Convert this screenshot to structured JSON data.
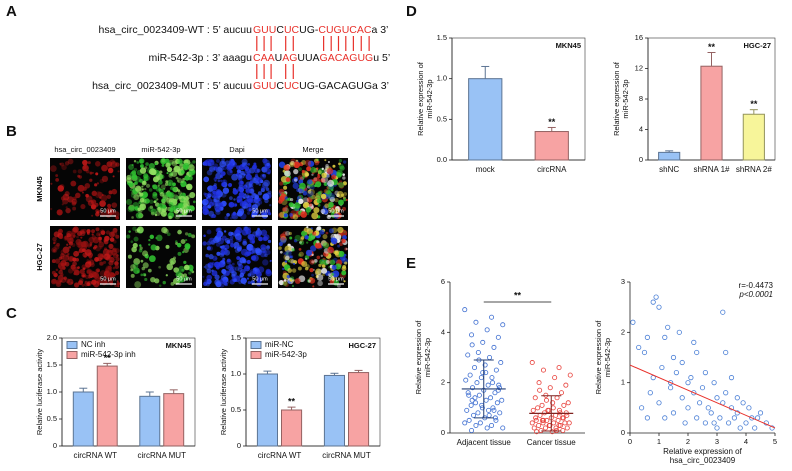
{
  "panel_labels": [
    "A",
    "B",
    "C",
    "D",
    "E"
  ],
  "panel_a": {
    "lines": [
      {
        "label": "hsa_circ_0023409-WT : 5’ aucuu",
        "segments": [
          {
            "text": "GUU",
            "color": "#e8302a"
          },
          {
            "text": "C",
            "color": "#111111"
          },
          {
            "text": "UC",
            "color": "#e8302a"
          },
          {
            "text": "UG-",
            "color": "#111111"
          },
          {
            "text": "CUGUCAC",
            "color": "#e8302a"
          },
          {
            "text": "a 3’",
            "color": "#111111"
          }
        ]
      },
      {
        "label": "miR-542-3p : 3’ aaagu",
        "segments": [
          {
            "text": "CAA",
            "color": "#e8302a"
          },
          {
            "text": "U",
            "color": "#111111"
          },
          {
            "text": "AG",
            "color": "#e8302a"
          },
          {
            "text": "UUA",
            "color": "#111111"
          },
          {
            "text": "GACAGUG",
            "color": "#e8302a"
          },
          {
            "text": "u 5’",
            "color": "#111111"
          }
        ]
      },
      {
        "label": "hsa_circ_0023409-MUT : 5’ aucuu",
        "segments": [
          {
            "text": "GUU",
            "color": "#e8302a"
          },
          {
            "text": "C",
            "color": "#111111"
          },
          {
            "text": "UC",
            "color": "#e8302a"
          },
          {
            "text": "UG-GACAGUGa 3’",
            "color": "#111111"
          }
        ]
      }
    ]
  },
  "panel_b": {
    "columns": [
      "hsa_circ_0023409",
      "miR-542-3p",
      "Dapi",
      "Merge"
    ],
    "rows": [
      "MKN45",
      "HGC-27"
    ],
    "scale_bar": "50 μm"
  },
  "chart_data": [
    {
      "type": "bar",
      "title": "MKN45",
      "ylabel": [
        "Relative luciferase activity"
      ],
      "categories": [
        "circRNA WT",
        "circRNA MUT"
      ],
      "series": [
        {
          "name": "NC inh",
          "color": "#99c2f5",
          "values": [
            1.0,
            0.92
          ],
          "errors": [
            0.07,
            0.08
          ]
        },
        {
          "name": "miR-542-3p inh",
          "color": "#f7a3a3",
          "values": [
            1.48,
            0.97
          ],
          "errors": [
            0.05,
            0.07
          ]
        }
      ],
      "ylim": [
        0,
        2
      ],
      "yticks": [
        0,
        0.5,
        {
          "value": 1,
          "label": "1.0"
        },
        1.5,
        {
          "value": 2,
          "label": "2.0"
        }
      ],
      "annotations": [
        "**"
      ]
    },
    {
      "type": "bar",
      "title": "HGC-27",
      "ylabel": [
        "Relative luciferase activity"
      ],
      "categories": [
        "circRNA WT",
        "circRNA MUT"
      ],
      "series": [
        {
          "name": "miR-NC",
          "color": "#99c2f5",
          "values": [
            1.0,
            0.98
          ],
          "errors": [
            0.04,
            0.03
          ]
        },
        {
          "name": "miR-542-3p",
          "color": "#f7a3a3",
          "values": [
            0.5,
            1.02
          ],
          "errors": [
            0.04,
            0.03
          ]
        }
      ],
      "ylim": [
        0,
        1.5
      ],
      "yticks": [
        0,
        0.5,
        {
          "value": 1,
          "label": "1.0"
        },
        1.5
      ],
      "annotations": [
        "**"
      ]
    },
    {
      "type": "bar",
      "title": "MKN45",
      "ylabel": [
        "Relative expression of",
        "miR-542-3p"
      ],
      "categories": [
        "mock",
        "circRNA"
      ],
      "values": [
        1.0,
        0.35
      ],
      "errors": [
        0.15,
        0.05
      ],
      "colors": [
        "#99c2f5",
        "#f7a3a3"
      ],
      "ylim": [
        0,
        1.5
      ],
      "yticks": [
        {
          "value": 0,
          "label": "0.0"
        },
        0.5,
        {
          "value": 1,
          "label": "1.0"
        },
        1.5
      ],
      "annotations": [
        "**"
      ]
    },
    {
      "type": "bar",
      "title": "HGC-27",
      "ylabel": [
        "Relative expression of",
        "miR-542-3p"
      ],
      "categories": [
        "shNC",
        "shRNA 1#",
        "shRNA 2#"
      ],
      "values": [
        1.0,
        12.3,
        6.0
      ],
      "errors": [
        0.2,
        1.8,
        0.6
      ],
      "colors": [
        "#99c2f5",
        "#f7a3a3",
        "#f7f59a"
      ],
      "ylim": [
        0,
        16
      ],
      "yticks": [
        0,
        4,
        8,
        12,
        16
      ],
      "annotations": [
        "**",
        "**"
      ]
    },
    {
      "type": "strip",
      "ylabel": [
        "Relative expression of",
        "miR-542-3p"
      ],
      "categories": [
        "Adjacent tissue",
        "Cancer tissue"
      ],
      "series": [
        {
          "color": "#3f6fd1",
          "mean": 1.75,
          "sd": 1.15,
          "values": [
            4.9,
            4.6,
            4.4,
            4.3,
            4.1,
            3.9,
            3.8,
            3.6,
            3.5,
            3.4,
            3.2,
            3.1,
            3.0,
            2.9,
            2.8,
            2.7,
            2.6,
            2.5,
            2.4,
            2.3,
            2.2,
            2.2,
            2.1,
            2.0,
            2.0,
            1.9,
            1.9,
            1.8,
            1.8,
            1.7,
            1.6,
            1.6,
            1.5,
            1.5,
            1.4,
            1.4,
            1.3,
            1.3,
            1.2,
            1.2,
            1.1,
            1.1,
            1.0,
            1.0,
            0.9,
            0.9,
            0.8,
            0.8,
            0.7,
            0.7,
            0.6,
            0.6,
            0.5,
            0.5,
            0.4,
            0.4,
            0.3,
            0.3,
            0.2,
            0.2,
            0.1,
            1.7,
            2.4,
            1.3,
            0.9
          ]
        },
        {
          "color": "#e8403a",
          "mean": 0.78,
          "sd": 0.7,
          "values": [
            2.8,
            2.6,
            2.5,
            2.3,
            2.2,
            2.0,
            1.9,
            1.8,
            1.7,
            1.6,
            1.5,
            1.4,
            1.4,
            1.3,
            1.2,
            1.2,
            1.1,
            1.1,
            1.0,
            1.0,
            0.9,
            0.9,
            0.9,
            0.8,
            0.8,
            0.8,
            0.7,
            0.7,
            0.7,
            0.6,
            0.6,
            0.6,
            0.5,
            0.5,
            0.5,
            0.5,
            0.4,
            0.4,
            0.4,
            0.4,
            0.3,
            0.3,
            0.3,
            0.3,
            0.2,
            0.2,
            0.2,
            0.2,
            0.1,
            0.1,
            0.1,
            0.05,
            0.05,
            0.6,
            0.9,
            0.4,
            0.3,
            0.5
          ]
        }
      ],
      "ylim": [
        0,
        6
      ],
      "yticks": [
        0,
        2,
        4,
        6
      ],
      "annotations": [
        "**"
      ]
    },
    {
      "type": "scatter",
      "ylabel": [
        "Relative expression of",
        "miR-542-3p"
      ],
      "xlabel": [
        "Relative expression of",
        "hsa_circ_0023409"
      ],
      "color": "#4a7fd6",
      "x": [
        0.1,
        0.3,
        0.4,
        0.5,
        0.6,
        0.7,
        0.8,
        0.8,
        0.9,
        1.0,
        1.0,
        1.1,
        1.2,
        1.2,
        1.3,
        1.4,
        1.5,
        1.5,
        1.6,
        1.7,
        1.8,
        1.8,
        1.9,
        2.0,
        2.0,
        2.1,
        2.2,
        2.3,
        2.3,
        2.4,
        2.5,
        2.6,
        2.6,
        2.7,
        2.8,
        2.9,
        3.0,
        3.0,
        3.1,
        3.2,
        3.2,
        3.3,
        3.4,
        3.5,
        3.5,
        3.6,
        3.7,
        3.8,
        3.9,
        4.0,
        4.1,
        4.2,
        4.3,
        4.5,
        4.7,
        4.9,
        3.3,
        2.2,
        1.4,
        0.6,
        2.9,
        3.7,
        4.4
      ],
      "y": [
        2.2,
        1.7,
        0.5,
        1.6,
        1.9,
        0.8,
        2.6,
        1.1,
        2.7,
        2.5,
        0.6,
        1.3,
        1.9,
        0.3,
        2.1,
        1.0,
        0.4,
        1.5,
        1.2,
        2.0,
        0.7,
        1.4,
        0.2,
        1.0,
        0.5,
        1.1,
        0.8,
        0.3,
        1.6,
        0.6,
        0.9,
        0.2,
        1.2,
        0.5,
        0.4,
        1.0,
        0.7,
        0.1,
        0.3,
        2.4,
        0.6,
        0.8,
        0.2,
        0.5,
        1.1,
        0.3,
        0.4,
        0.1,
        0.6,
        0.2,
        0.5,
        0.3,
        0.1,
        0.4,
        0.2,
        0.1,
        1.6,
        1.8,
        0.9,
        0.3,
        0.2,
        0.7,
        0.3
      ],
      "trend_x": [
        0,
        5
      ],
      "trend_y": [
        1.35,
        0.1
      ],
      "trend_color": "#e8302a",
      "xlim": [
        0,
        5
      ],
      "xticks": [
        0,
        1,
        2,
        3,
        4,
        5
      ],
      "ylim": [
        0,
        3
      ],
      "yticks": [
        0,
        1,
        2,
        3
      ],
      "annotations": [
        "r=-0.4473",
        "p<0.0001"
      ]
    }
  ]
}
